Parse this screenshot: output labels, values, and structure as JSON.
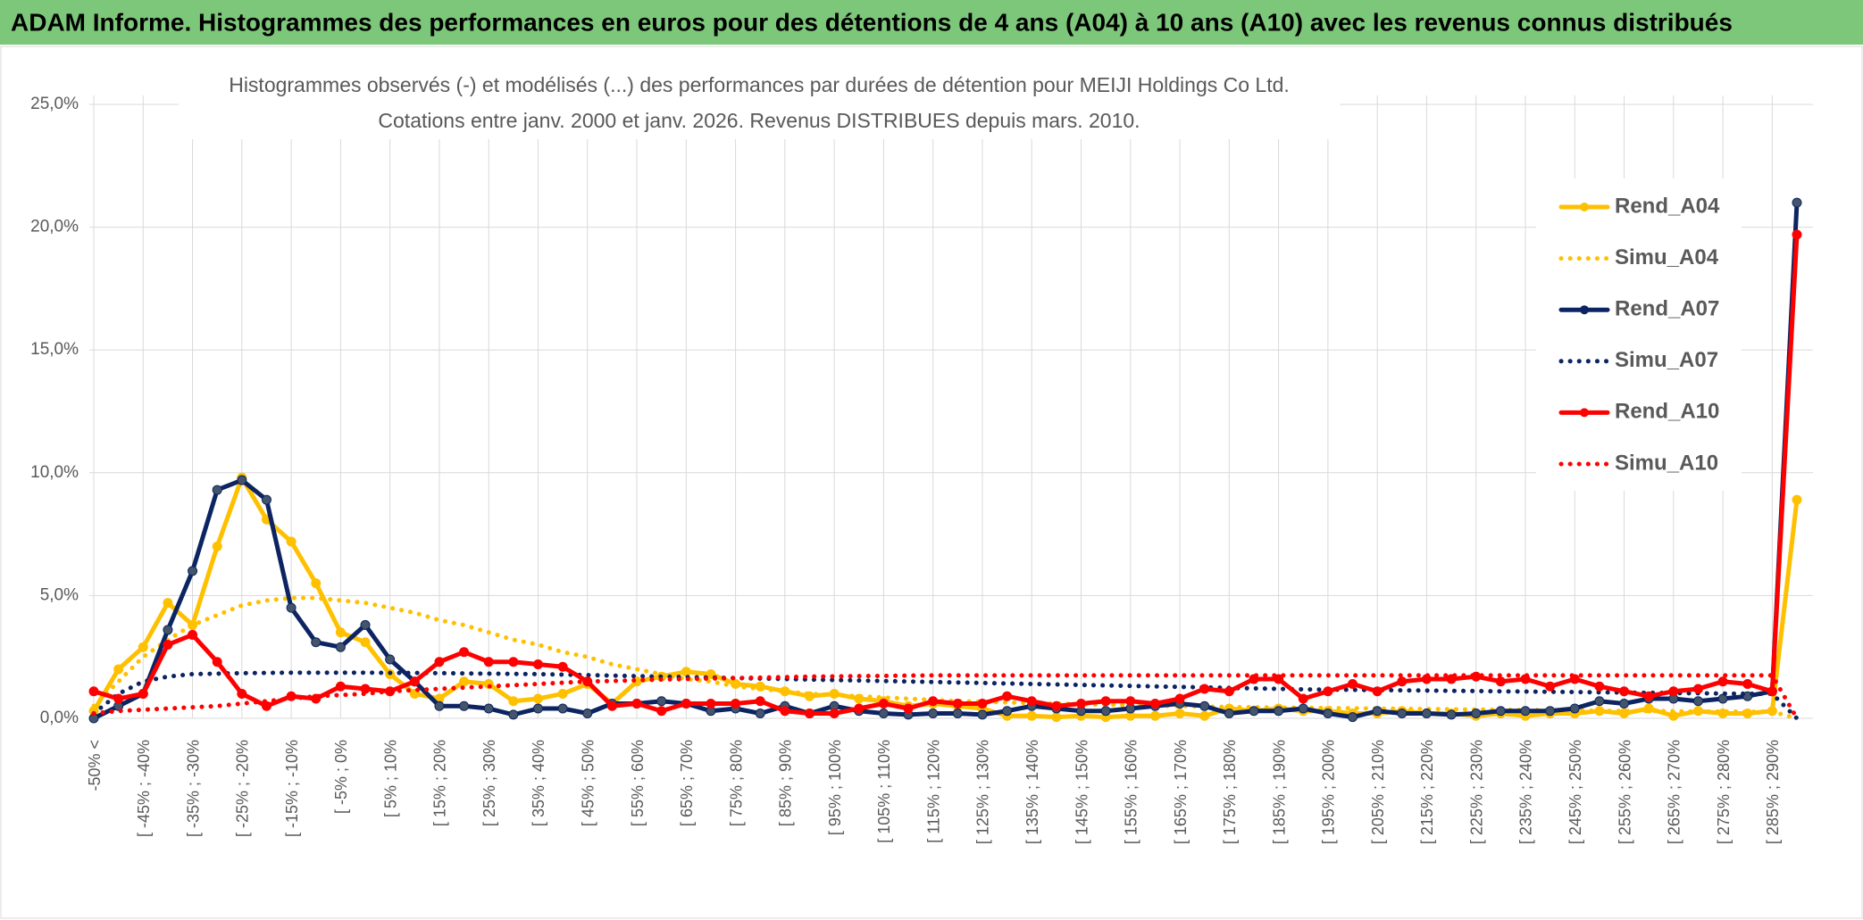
{
  "header": {
    "title": "ADAM Informe. Histogrammes des performances en euros pour des détentions de 4 ans (A04) à 10 ans (A10) avec les revenus connus distribués"
  },
  "chart_data": {
    "type": "line",
    "title": "Histogrammes observés (-) et modélisés (...) des performances par durées de détention pour MEIJI Holdings Co Ltd.",
    "subtitle": "Cotations entre janv. 2000 et janv. 2026. Revenus DISTRIBUES depuis mars. 2010.",
    "categories": [
      "-50% <",
      null,
      "[ -45% ; -40%",
      null,
      "[ -35% ; -30%",
      null,
      "[ -25% ; -20%",
      null,
      "[ -15% ; -10%",
      null,
      "[ -5% ; 0%",
      null,
      "[ 5% ; 10%",
      null,
      "[ 15% ; 20%",
      null,
      "[ 25% ; 30%",
      null,
      "[ 35% ; 40%",
      null,
      "[ 45% ; 50%",
      null,
      "[ 55% ; 60%",
      null,
      "[ 65% ; 70%",
      null,
      "[ 75% ; 80%",
      null,
      "[ 85% ; 90%",
      null,
      "[ 95% ; 100%",
      null,
      "[ 105% ; 110%",
      null,
      "[ 115% ; 120%",
      null,
      "[ 125% ; 130%",
      null,
      "[ 135% ; 140%",
      null,
      "[ 145% ; 150%",
      null,
      "[ 155% ; 160%",
      null,
      "[ 165% ; 170%",
      null,
      "[ 175% ; 180%",
      null,
      "[ 185% ; 190%",
      null,
      "[ 195% ; 200%",
      null,
      "[ 205% ; 210%",
      null,
      "[ 215% ; 220%",
      null,
      "[ 225% ; 230%",
      null,
      "[ 235% ; 240%",
      null,
      "[ 245% ; 250%",
      null,
      "[ 255% ; 260%",
      null,
      "[ 265% ; 270%",
      null,
      "[ 275% ; 280%",
      null,
      "[ 285% ; 290%",
      null
    ],
    "series": [
      {
        "name": "Rend_A04",
        "color": "#ffc000",
        "style": "solid",
        "values": [
          0.3,
          2.0,
          2.9,
          4.7,
          3.8,
          7.0,
          9.8,
          8.1,
          7.2,
          5.5,
          3.5,
          3.1,
          1.8,
          1.0,
          0.8,
          1.5,
          1.4,
          0.7,
          0.8,
          1.0,
          1.4,
          0.6,
          1.5,
          1.7,
          1.9,
          1.8,
          1.4,
          1.3,
          1.1,
          0.9,
          1.0,
          0.8,
          0.7,
          0.5,
          0.6,
          0.5,
          0.4,
          0.1,
          0.1,
          0.05,
          0.1,
          0.05,
          0.1,
          0.1,
          0.2,
          0.1,
          0.4,
          0.3,
          0.4,
          0.3,
          0.3,
          0.2,
          0.2,
          0.3,
          0.2,
          0.2,
          0.1,
          0.2,
          0.1,
          0.2,
          0.2,
          0.3,
          0.2,
          0.4,
          0.1,
          0.3,
          0.2,
          0.2,
          0.3,
          8.9
        ]
      },
      {
        "name": "Simu_A04",
        "color": "#ffc000",
        "style": "dotted",
        "values": [
          0.5,
          1.5,
          2.5,
          3.2,
          3.8,
          4.2,
          4.6,
          4.8,
          4.9,
          4.9,
          4.8,
          4.7,
          4.5,
          4.3,
          4.0,
          3.8,
          3.5,
          3.2,
          3.0,
          2.7,
          2.5,
          2.2,
          2.0,
          1.8,
          1.6,
          1.5,
          1.3,
          1.2,
          1.1,
          1.0,
          0.95,
          0.9,
          0.85,
          0.8,
          0.75,
          0.7,
          0.68,
          0.65,
          0.62,
          0.6,
          0.58,
          0.56,
          0.54,
          0.52,
          0.5,
          0.48,
          0.46,
          0.45,
          0.44,
          0.43,
          0.42,
          0.41,
          0.4,
          0.39,
          0.38,
          0.37,
          0.36,
          0.35,
          0.34,
          0.33,
          0.32,
          0.31,
          0.3,
          0.3,
          0.29,
          0.28,
          0.28,
          0.27,
          0.27,
          0
        ]
      },
      {
        "name": "Rend_A07",
        "color": "#0c2461",
        "style": "solid",
        "values": [
          0.0,
          0.5,
          1.0,
          3.6,
          6.0,
          9.3,
          9.7,
          8.9,
          4.5,
          3.1,
          2.9,
          3.8,
          2.4,
          1.5,
          0.5,
          0.5,
          0.4,
          0.15,
          0.4,
          0.4,
          0.2,
          0.6,
          0.6,
          0.7,
          0.6,
          0.3,
          0.4,
          0.2,
          0.5,
          0.2,
          0.5,
          0.3,
          0.2,
          0.15,
          0.2,
          0.2,
          0.15,
          0.3,
          0.5,
          0.4,
          0.3,
          0.3,
          0.4,
          0.5,
          0.6,
          0.5,
          0.2,
          0.3,
          0.3,
          0.4,
          0.2,
          0.05,
          0.3,
          0.2,
          0.2,
          0.15,
          0.2,
          0.3,
          0.3,
          0.3,
          0.4,
          0.7,
          0.6,
          0.8,
          0.8,
          0.7,
          0.8,
          0.9,
          1.1,
          21.0
        ]
      },
      {
        "name": "Simu_A07",
        "color": "#0c2461",
        "style": "dotted",
        "values": [
          0.2,
          1.0,
          1.5,
          1.7,
          1.8,
          1.82,
          1.84,
          1.85,
          1.86,
          1.86,
          1.86,
          1.86,
          1.85,
          1.85,
          1.84,
          1.83,
          1.82,
          1.81,
          1.8,
          1.78,
          1.76,
          1.74,
          1.72,
          1.7,
          1.68,
          1.66,
          1.64,
          1.62,
          1.6,
          1.58,
          1.56,
          1.54,
          1.52,
          1.5,
          1.48,
          1.46,
          1.44,
          1.42,
          1.4,
          1.38,
          1.36,
          1.34,
          1.32,
          1.3,
          1.28,
          1.26,
          1.24,
          1.22,
          1.2,
          1.18,
          1.17,
          1.16,
          1.15,
          1.14,
          1.13,
          1.12,
          1.11,
          1.1,
          1.09,
          1.08,
          1.07,
          1.06,
          1.05,
          1.04,
          1.03,
          1.02,
          1.01,
          1.0,
          1.0,
          0
        ]
      },
      {
        "name": "Rend_A10",
        "color": "#ff0000",
        "style": "solid",
        "values": [
          1.1,
          0.8,
          1.0,
          3.0,
          3.4,
          2.3,
          1.0,
          0.5,
          0.9,
          0.8,
          1.3,
          1.2,
          1.1,
          1.5,
          2.3,
          2.7,
          2.3,
          2.3,
          2.2,
          2.1,
          1.5,
          0.5,
          0.6,
          0.3,
          0.6,
          0.6,
          0.6,
          0.7,
          0.3,
          0.2,
          0.2,
          0.4,
          0.6,
          0.4,
          0.7,
          0.6,
          0.6,
          0.9,
          0.7,
          0.5,
          0.6,
          0.7,
          0.7,
          0.6,
          0.8,
          1.2,
          1.1,
          1.6,
          1.6,
          0.8,
          1.1,
          1.4,
          1.1,
          1.5,
          1.6,
          1.6,
          1.7,
          1.5,
          1.6,
          1.3,
          1.6,
          1.3,
          1.1,
          0.9,
          1.1,
          1.2,
          1.5,
          1.4,
          1.1,
          19.7
        ]
      },
      {
        "name": "Simu_A10",
        "color": "#ff0000",
        "style": "dotted",
        "values": [
          0.2,
          0.3,
          0.35,
          0.4,
          0.45,
          0.5,
          0.6,
          0.7,
          0.8,
          0.9,
          0.95,
          1.0,
          1.1,
          1.15,
          1.2,
          1.25,
          1.3,
          1.35,
          1.4,
          1.45,
          1.5,
          1.52,
          1.55,
          1.58,
          1.6,
          1.62,
          1.64,
          1.66,
          1.68,
          1.7,
          1.71,
          1.72,
          1.73,
          1.74,
          1.75,
          1.75,
          1.75,
          1.75,
          1.75,
          1.75,
          1.75,
          1.75,
          1.75,
          1.75,
          1.75,
          1.75,
          1.75,
          1.75,
          1.75,
          1.75,
          1.75,
          1.75,
          1.75,
          1.75,
          1.75,
          1.75,
          1.75,
          1.75,
          1.75,
          1.75,
          1.75,
          1.75,
          1.75,
          1.75,
          1.75,
          1.75,
          1.75,
          1.75,
          1.75,
          0
        ]
      }
    ],
    "ylim": [
      0,
      25
    ],
    "yticks": [
      {
        "value": 0,
        "label": "0,0%"
      },
      {
        "value": 5,
        "label": "5,0%"
      },
      {
        "value": 10,
        "label": "10,0%"
      },
      {
        "value": 15,
        "label": "15,0%"
      },
      {
        "value": 20,
        "label": "20,0%"
      },
      {
        "value": 25,
        "label": "25,0%"
      }
    ],
    "grid": true,
    "legend": "right"
  }
}
